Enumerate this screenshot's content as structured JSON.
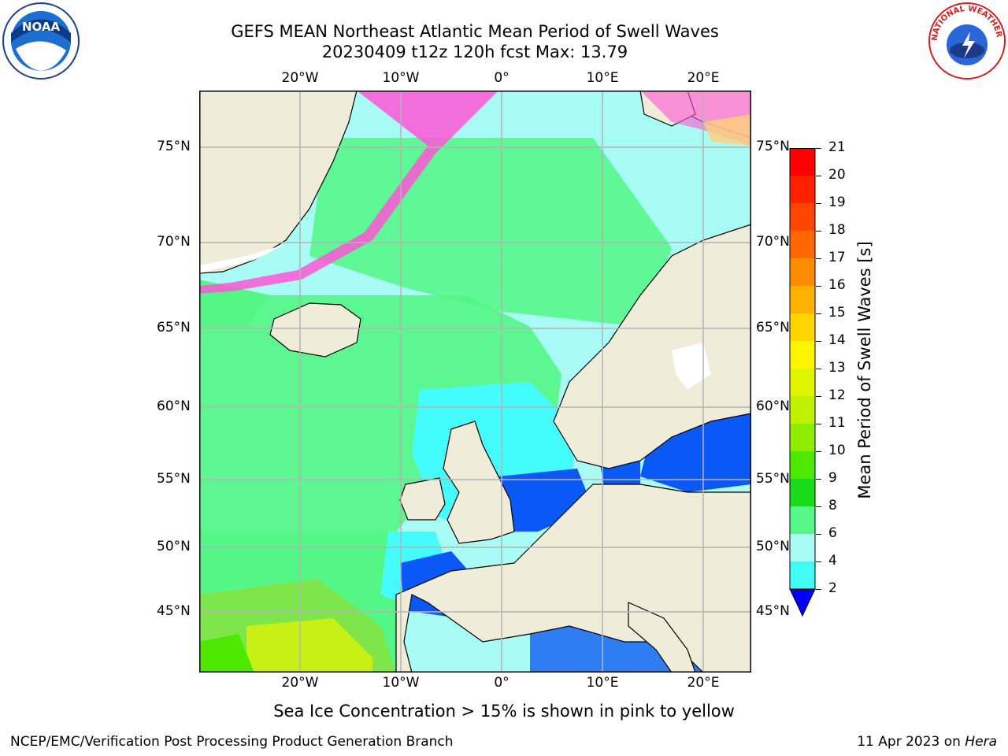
{
  "header": {
    "title_line1": "GEFS MEAN Northeast Atlantic Mean Period of Swell Waves",
    "title_line2": "20230409 t12z 120h fcst   Max: 13.79"
  },
  "logos": {
    "left": {
      "text": "NOAA",
      "icon": "noaa-logo-icon"
    },
    "right": {
      "text": "NATIONAL WEATHER SERVICE",
      "icon": "nws-logo-icon"
    }
  },
  "map": {
    "lon_labels_top": [
      "20°W",
      "10°W",
      "0°",
      "10°E",
      "20°E"
    ],
    "lon_labels_bottom": [
      "20°W",
      "10°W",
      "0°",
      "10°E",
      "20°E"
    ],
    "lat_labels": [
      "75°N",
      "70°N",
      "65°N",
      "60°N",
      "55°N",
      "50°N",
      "45°N"
    ],
    "colors": {
      "land": "#efecda",
      "ocean_light": "#a9fbf6",
      "ocean_cyan": "#44fcfb",
      "ocean_green": "#54f686",
      "ocean_blue": "#0a58f6",
      "gridline": "#b4b4b4"
    }
  },
  "colorbar": {
    "label": "Mean Period of Swell Waves [s]",
    "ticks": [
      "21",
      "20",
      "19",
      "18",
      "17",
      "16",
      "15",
      "14",
      "13",
      "12",
      "11",
      "10",
      "9",
      "8",
      "6",
      "4",
      "2"
    ],
    "colors": [
      "#ff0000",
      "#ff2000",
      "#ff4500",
      "#ff6800",
      "#ff8c00",
      "#ffb000",
      "#ffd400",
      "#fff500",
      "#e1f500",
      "#c0f200",
      "#8fee00",
      "#4de800",
      "#1ad81a",
      "#55f786",
      "#a9fbf6",
      "#42fbf7",
      "#00eaf7",
      "#00c8ff",
      "#0a58f6"
    ]
  },
  "caption": "Sea Ice Concentration > 15% is shown in pink to yellow",
  "footer": {
    "left": "NCEP/EMC/Verification Post Processing Product Generation Branch",
    "right_date": "11 Apr 2023 on ",
    "right_host": "Hera"
  }
}
